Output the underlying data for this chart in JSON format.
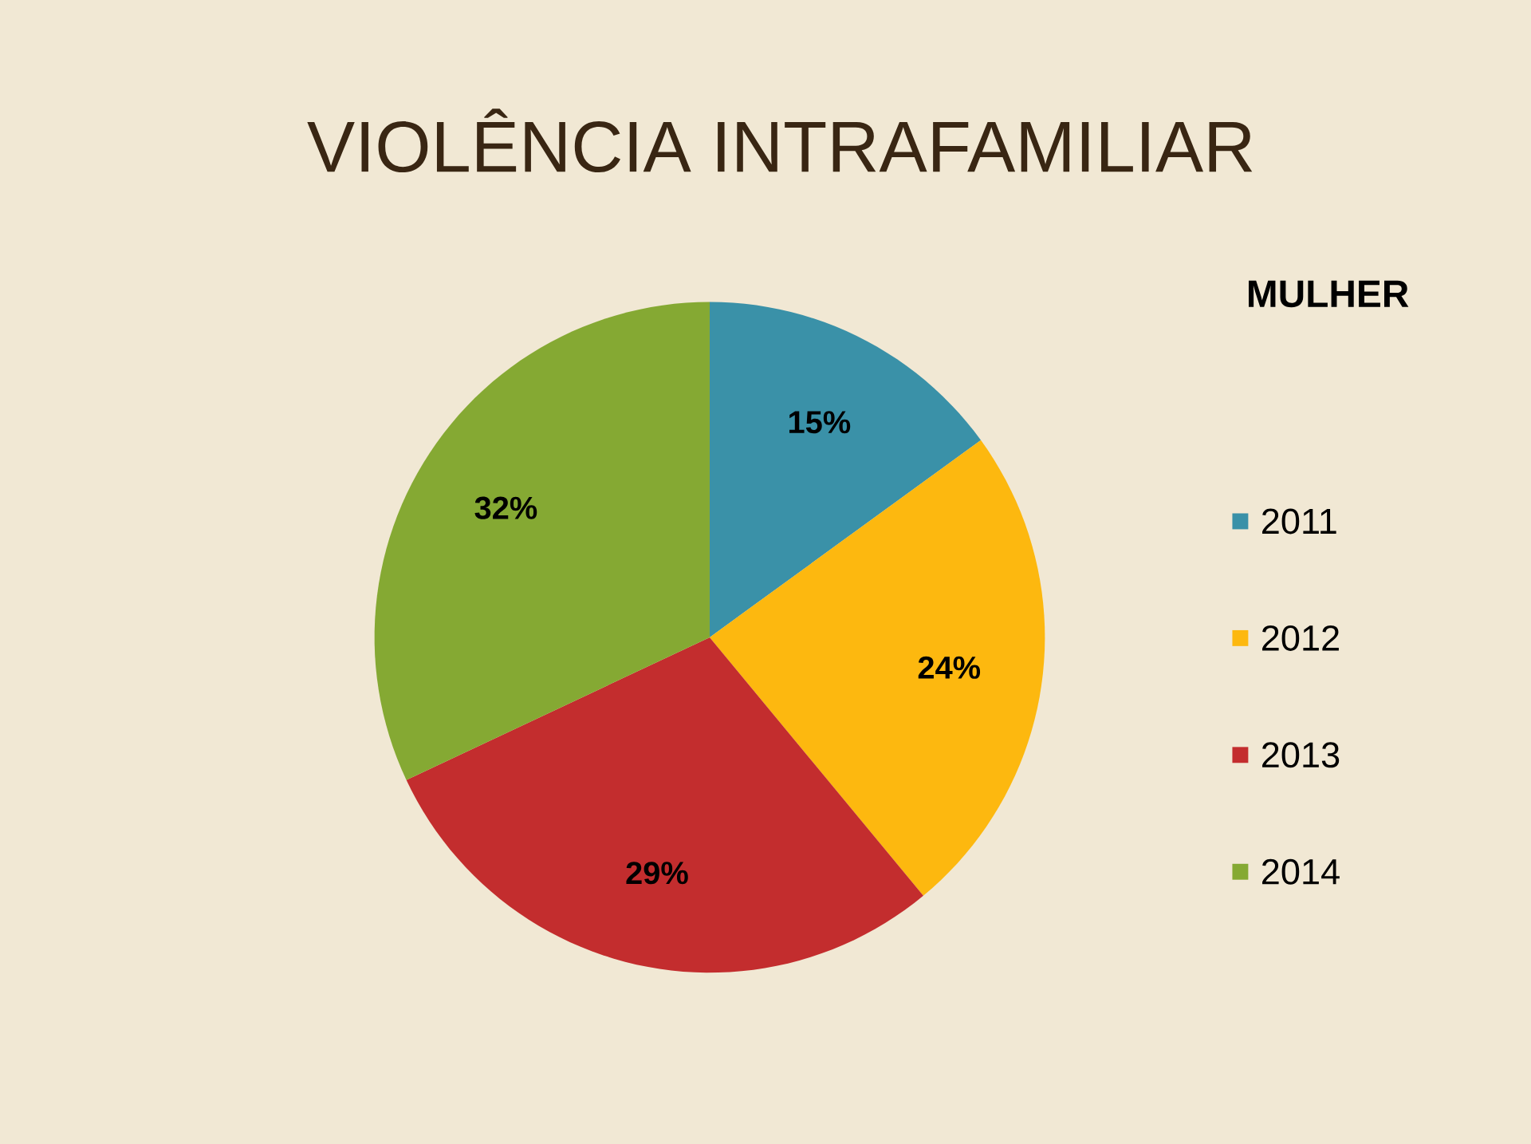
{
  "chart_data": {
    "type": "pie",
    "title": "VIOLÊNCIA INTRAFAMILIAR",
    "legend_title": "MULHER",
    "categories": [
      "2011",
      "2012",
      "2013",
      "2014"
    ],
    "values": [
      15,
      24,
      29,
      32
    ],
    "value_labels": [
      "15%",
      "24%",
      "29%",
      "32%"
    ],
    "colors": [
      "#3a91a8",
      "#fdb80f",
      "#c32d2e",
      "#85a933"
    ],
    "legend": "right"
  }
}
